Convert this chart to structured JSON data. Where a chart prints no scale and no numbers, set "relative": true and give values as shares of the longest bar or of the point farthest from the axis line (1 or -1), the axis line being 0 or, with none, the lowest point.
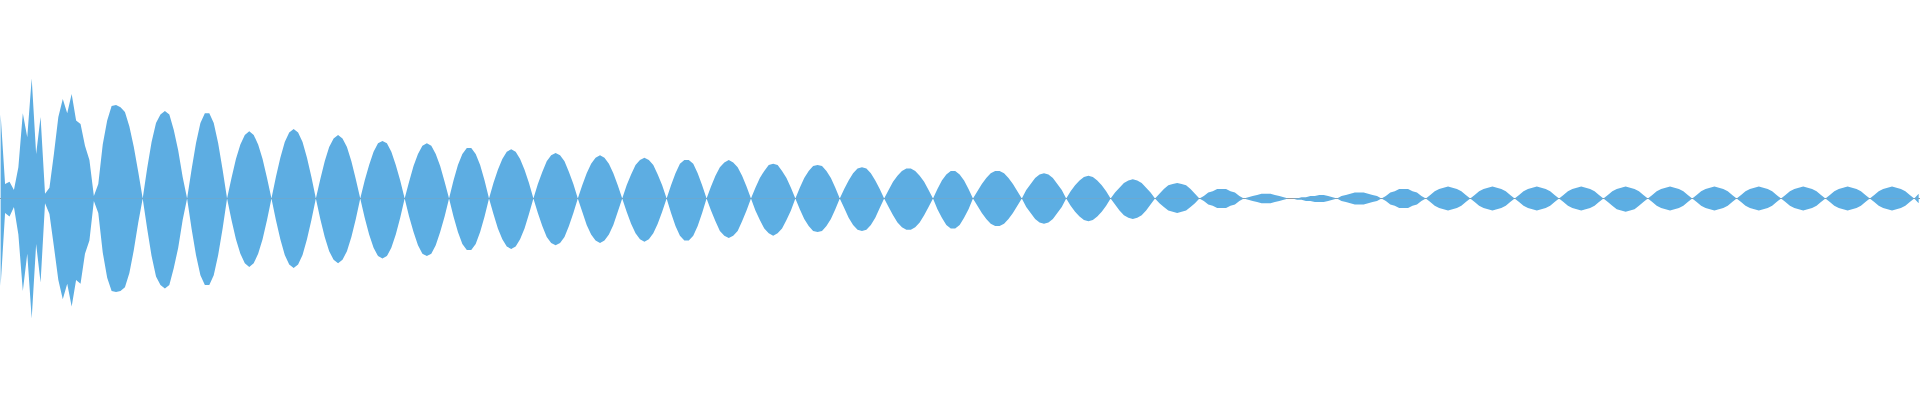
{
  "chart_data": {
    "type": "area",
    "relative": true,
    "categories": [
      null,
      null,
      null,
      null,
      null,
      null,
      null,
      null,
      null,
      null,
      null,
      null,
      null,
      null,
      null,
      null,
      null,
      null,
      null,
      null,
      null,
      null,
      null,
      null,
      null,
      null,
      null,
      null,
      null,
      null,
      null,
      null,
      null,
      null,
      null,
      null,
      null,
      null,
      null,
      null,
      null,
      null,
      null,
      null,
      null,
      null,
      null,
      null,
      null,
      null,
      null,
      null,
      null,
      null,
      null,
      null,
      null,
      null,
      null,
      null,
      null,
      null,
      null,
      null,
      null,
      null,
      null,
      null,
      null,
      null,
      null,
      null,
      null,
      null,
      null,
      null,
      null,
      null,
      null,
      null,
      null,
      null,
      null,
      null,
      null,
      null,
      null,
      null,
      null,
      null,
      null,
      null,
      null,
      null,
      null,
      null,
      null,
      null,
      null,
      null,
      null,
      null,
      null,
      null,
      null,
      null,
      null,
      null,
      null,
      null,
      null,
      null,
      null,
      null,
      null,
      null,
      null,
      null,
      null,
      null,
      null,
      null,
      null,
      null,
      null,
      null,
      null,
      null,
      null,
      null,
      null,
      null,
      null,
      null,
      null,
      null,
      null,
      null,
      null,
      null,
      null,
      null,
      null,
      null,
      null,
      null,
      null,
      null,
      null,
      null,
      null,
      null,
      null,
      null,
      null,
      null,
      null,
      null,
      null,
      null,
      null,
      null,
      null,
      null,
      null,
      null,
      null,
      null,
      null,
      null,
      null,
      null,
      null,
      null,
      null,
      null,
      null,
      null,
      null,
      null,
      null,
      null,
      null,
      null,
      null,
      null,
      null,
      null,
      null,
      null,
      null,
      null,
      null,
      null,
      null,
      null,
      null,
      null,
      null,
      null,
      null,
      null,
      null,
      null,
      null,
      null,
      null,
      null,
      null,
      null,
      null,
      null,
      null,
      null,
      null,
      null,
      null,
      null,
      null,
      null,
      null,
      null,
      null,
      null,
      null,
      null,
      null,
      null,
      null,
      null,
      null,
      null,
      null,
      null,
      null,
      null,
      null,
      null,
      null,
      null,
      null,
      null,
      null,
      null,
      null,
      null,
      null,
      null,
      null,
      null,
      null,
      null,
      null,
      null,
      null,
      null,
      null,
      null,
      null,
      null,
      null,
      null,
      null,
      null,
      null,
      null,
      null,
      null,
      null,
      null,
      null,
      null,
      null,
      null,
      null,
      null,
      null,
      null,
      null,
      null,
      null,
      null,
      null,
      null,
      null,
      null,
      null,
      null,
      null,
      null,
      null,
      null,
      null,
      null,
      null,
      null,
      null,
      null,
      null,
      null,
      null,
      null,
      null,
      null,
      null,
      null,
      null,
      null,
      null,
      null,
      null,
      null,
      null,
      null,
      null,
      null,
      null,
      null,
      null,
      null,
      null,
      null,
      null,
      null,
      null,
      null,
      null,
      null,
      null,
      null,
      null,
      null,
      null,
      null,
      null,
      null,
      null,
      null,
      null,
      null,
      null,
      null,
      null,
      null,
      null,
      null,
      null,
      null,
      null,
      null,
      null,
      null,
      null,
      null,
      null,
      null,
      null,
      null,
      null,
      null,
      null,
      null,
      null,
      null,
      null,
      null,
      null,
      null,
      null,
      null,
      null,
      null,
      null,
      null,
      null,
      null,
      null,
      null,
      null,
      null,
      null,
      null,
      null,
      null,
      null,
      null,
      null,
      null,
      null,
      null,
      null,
      null,
      null,
      null,
      null,
      null,
      null,
      null,
      null,
      null,
      null,
      null,
      null,
      null,
      null,
      null,
      null,
      null,
      null,
      null,
      null,
      null,
      null,
      null,
      null,
      null,
      null,
      null,
      null,
      null,
      null,
      null,
      null,
      null,
      null,
      null,
      null,
      null,
      null,
      null,
      null,
      null,
      null
    ],
    "series": [
      {
        "color": "#5dade2",
        "values": [
          0.7,
          0.12,
          0.14,
          0.07,
          0.26,
          0.71,
          0.51,
          1.0,
          0.37,
          0.68,
          0.04,
          0.09,
          0.37,
          0.68,
          0.83,
          0.71,
          0.87,
          0.65,
          0.62,
          0.44,
          0.32,
          0.02,
          0.12,
          0.45,
          0.65,
          0.77,
          0.78,
          0.76,
          0.72,
          0.6,
          0.43,
          0.22,
          0,
          0.25,
          0.47,
          0.63,
          0.7,
          0.73,
          0.7,
          0.57,
          0.4,
          0.18,
          0,
          0.24,
          0.46,
          0.63,
          0.71,
          0.71,
          0.63,
          0.46,
          0.24,
          0,
          0.17,
          0.33,
          0.45,
          0.53,
          0.56,
          0.53,
          0.45,
          0.33,
          0.17,
          0,
          0.18,
          0.34,
          0.47,
          0.55,
          0.58,
          0.55,
          0.47,
          0.34,
          0.18,
          0,
          0.16,
          0.31,
          0.43,
          0.5,
          0.53,
          0.5,
          0.43,
          0.31,
          0.16,
          0,
          0.15,
          0.28,
          0.39,
          0.46,
          0.48,
          0.46,
          0.39,
          0.28,
          0.15,
          0,
          0.14,
          0.27,
          0.37,
          0.44,
          0.46,
          0.44,
          0.37,
          0.27,
          0.14,
          0,
          0.15,
          0.28,
          0.37,
          0.42,
          0.42,
          0.37,
          0.28,
          0.15,
          0,
          0.13,
          0.24,
          0.33,
          0.39,
          0.41,
          0.39,
          0.33,
          0.24,
          0.13,
          0,
          0.12,
          0.22,
          0.31,
          0.36,
          0.38,
          0.36,
          0.31,
          0.22,
          0.12,
          0,
          0.11,
          0.21,
          0.29,
          0.34,
          0.36,
          0.34,
          0.29,
          0.21,
          0.11,
          0,
          0.11,
          0.2,
          0.28,
          0.32,
          0.34,
          0.32,
          0.28,
          0.2,
          0.11,
          0,
          0.11,
          0.21,
          0.29,
          0.32,
          0.32,
          0.29,
          0.21,
          0.11,
          0,
          0.1,
          0.19,
          0.26,
          0.3,
          0.32,
          0.3,
          0.26,
          0.19,
          0.1,
          0,
          0.09,
          0.17,
          0.23,
          0.28,
          0.29,
          0.28,
          0.23,
          0.17,
          0.09,
          0,
          0.09,
          0.17,
          0.23,
          0.27,
          0.28,
          0.27,
          0.23,
          0.17,
          0.09,
          0,
          0.08,
          0.15,
          0.21,
          0.25,
          0.26,
          0.25,
          0.21,
          0.15,
          0.08,
          0,
          0.07,
          0.14,
          0.19,
          0.23,
          0.25,
          0.25,
          0.23,
          0.19,
          0.14,
          0.07,
          0,
          0.08,
          0.15,
          0.2,
          0.23,
          0.23,
          0.2,
          0.15,
          0.08,
          0,
          0.06,
          0.12,
          0.17,
          0.21,
          0.23,
          0.23,
          0.21,
          0.17,
          0.12,
          0.06,
          0,
          0.07,
          0.12,
          0.17,
          0.2,
          0.21,
          0.2,
          0.17,
          0.12,
          0.07,
          0,
          0.06,
          0.11,
          0.15,
          0.18,
          0.19,
          0.18,
          0.15,
          0.11,
          0.06,
          0,
          0.05,
          0.09,
          0.13,
          0.15,
          0.16,
          0.15,
          0.13,
          0.09,
          0.05,
          0,
          0.04,
          0.08,
          0.11,
          0.12,
          0.13,
          0.12,
          0.11,
          0.08,
          0.04,
          0,
          0.02,
          0.05,
          0.06,
          0.08,
          0.08,
          0.08,
          0.06,
          0.05,
          0.02,
          0,
          0.01,
          0.02,
          0.03,
          0.04,
          0.04,
          0.04,
          0.03,
          0.02,
          0.01,
          0,
          0,
          0,
          0.01,
          0.01,
          0.02,
          0.02,
          0.03,
          0.03,
          0.02,
          0.01,
          0,
          0.02,
          0.03,
          0.04,
          0.05,
          0.05,
          0.05,
          0.04,
          0.03,
          0.02,
          0,
          0.02,
          0.05,
          0.06,
          0.08,
          0.08,
          0.08,
          0.06,
          0.05,
          0.02,
          0,
          0.03,
          0.06,
          0.08,
          0.09,
          0.1,
          0.09,
          0.08,
          0.06,
          0.03,
          0,
          0.03,
          0.06,
          0.08,
          0.09,
          0.1,
          0.09,
          0.08,
          0.06,
          0.03,
          0,
          0.03,
          0.06,
          0.08,
          0.09,
          0.1,
          0.09,
          0.08,
          0.06,
          0.03,
          0,
          0.03,
          0.06,
          0.08,
          0.09,
          0.1,
          0.09,
          0.08,
          0.06,
          0.03,
          0,
          0.03,
          0.06,
          0.08,
          0.09,
          0.1,
          0.09,
          0.08,
          0.06,
          0.03,
          0,
          0.03,
          0.06,
          0.08,
          0.09,
          0.1,
          0.09,
          0.08,
          0.06,
          0.03,
          0,
          0.03,
          0.06,
          0.08,
          0.09,
          0.1,
          0.09,
          0.08,
          0.06,
          0.03,
          0,
          0.03,
          0.06,
          0.08,
          0.09,
          0.1,
          0.09,
          0.08,
          0.06,
          0.03,
          0,
          0.03,
          0.06,
          0.08,
          0.09,
          0.1,
          0.09,
          0.08,
          0.06,
          0.03,
          0,
          0.03,
          0.06,
          0.08,
          0.09,
          0.1,
          0.09,
          0.08,
          0.06,
          0.03,
          0,
          0.03,
          0.06,
          0.08,
          0.09,
          0.1,
          0.09,
          0.08,
          0.06,
          0.03,
          0,
          0.04
        ]
      },
      {
        "color": "#5caee3",
        "values": [
          -0.73,
          -0.12,
          -0.15,
          -0.07,
          -0.3,
          -0.77,
          -0.46,
          -1.0,
          -0.38,
          -0.7,
          -0.04,
          -0.13,
          -0.4,
          -0.68,
          -0.84,
          -0.71,
          -0.9,
          -0.68,
          -0.71,
          -0.46,
          -0.35,
          -0.02,
          -0.12,
          -0.45,
          -0.66,
          -0.77,
          -0.78,
          -0.77,
          -0.74,
          -0.62,
          -0.43,
          -0.2,
          0,
          -0.25,
          -0.48,
          -0.65,
          -0.72,
          -0.75,
          -0.72,
          -0.58,
          -0.41,
          -0.18,
          0,
          -0.25,
          -0.47,
          -0.64,
          -0.72,
          -0.72,
          -0.64,
          -0.47,
          -0.25,
          0,
          -0.18,
          -0.34,
          -0.46,
          -0.54,
          -0.57,
          -0.54,
          -0.46,
          -0.34,
          -0.18,
          0,
          -0.18,
          -0.34,
          -0.47,
          -0.55,
          -0.58,
          -0.55,
          -0.47,
          -0.34,
          -0.18,
          0,
          -0.17,
          -0.32,
          -0.44,
          -0.51,
          -0.54,
          -0.51,
          -0.44,
          -0.32,
          -0.17,
          0,
          -0.16,
          -0.3,
          -0.41,
          -0.48,
          -0.5,
          -0.48,
          -0.41,
          -0.3,
          -0.16,
          0,
          -0.15,
          -0.28,
          -0.39,
          -0.46,
          -0.48,
          -0.46,
          -0.39,
          -0.28,
          -0.15,
          0,
          -0.15,
          -0.28,
          -0.38,
          -0.43,
          -0.43,
          -0.38,
          -0.28,
          -0.15,
          0,
          -0.13,
          -0.25,
          -0.34,
          -0.4,
          -0.42,
          -0.4,
          -0.34,
          -0.25,
          -0.13,
          0,
          -0.12,
          -0.23,
          -0.32,
          -0.37,
          -0.39,
          -0.37,
          -0.32,
          -0.23,
          -0.12,
          0,
          -0.11,
          -0.22,
          -0.3,
          -0.35,
          -0.37,
          -0.35,
          -0.3,
          -0.22,
          -0.11,
          0,
          -0.11,
          -0.21,
          -0.29,
          -0.34,
          -0.36,
          -0.34,
          -0.29,
          -0.21,
          -0.11,
          0,
          -0.12,
          -0.23,
          -0.31,
          -0.35,
          -0.35,
          -0.31,
          -0.23,
          -0.12,
          0,
          -0.1,
          -0.19,
          -0.27,
          -0.31,
          -0.33,
          -0.31,
          -0.27,
          -0.19,
          -0.1,
          0,
          -0.1,
          -0.18,
          -0.25,
          -0.29,
          -0.31,
          -0.29,
          -0.25,
          -0.18,
          -0.1,
          0,
          -0.09,
          -0.17,
          -0.23,
          -0.27,
          -0.28,
          -0.27,
          -0.23,
          -0.17,
          -0.09,
          0,
          -0.08,
          -0.16,
          -0.22,
          -0.26,
          -0.27,
          -0.26,
          -0.22,
          -0.16,
          -0.08,
          0,
          -0.07,
          -0.14,
          -0.2,
          -0.24,
          -0.26,
          -0.26,
          -0.24,
          -0.2,
          -0.14,
          -0.07,
          0,
          -0.09,
          -0.16,
          -0.22,
          -0.25,
          -0.25,
          -0.22,
          -0.16,
          -0.09,
          0,
          -0.06,
          -0.12,
          -0.17,
          -0.21,
          -0.23,
          -0.23,
          -0.21,
          -0.17,
          -0.12,
          -0.06,
          0,
          -0.07,
          -0.12,
          -0.17,
          -0.2,
          -0.21,
          -0.2,
          -0.17,
          -0.12,
          -0.07,
          0,
          -0.06,
          -0.11,
          -0.15,
          -0.18,
          -0.19,
          -0.18,
          -0.15,
          -0.11,
          -0.06,
          0,
          -0.05,
          -0.1,
          -0.14,
          -0.16,
          -0.17,
          -0.16,
          -0.14,
          -0.1,
          -0.05,
          0,
          -0.04,
          -0.07,
          -0.1,
          -0.11,
          -0.12,
          -0.11,
          -0.1,
          -0.07,
          -0.04,
          0,
          -0.02,
          -0.05,
          -0.06,
          -0.08,
          -0.08,
          -0.08,
          -0.06,
          -0.05,
          -0.02,
          0,
          -0.01,
          -0.02,
          -0.03,
          -0.04,
          -0.04,
          -0.04,
          -0.03,
          -0.02,
          -0.01,
          0,
          0,
          -0.01,
          -0.01,
          -0.02,
          -0.02,
          -0.03,
          -0.03,
          -0.03,
          -0.02,
          -0.01,
          0,
          -0.02,
          -0.03,
          -0.04,
          -0.05,
          -0.05,
          -0.05,
          -0.04,
          -0.03,
          -0.02,
          0,
          -0.02,
          -0.05,
          -0.06,
          -0.08,
          -0.08,
          -0.08,
          -0.06,
          -0.05,
          -0.02,
          0,
          -0.03,
          -0.06,
          -0.08,
          -0.09,
          -0.1,
          -0.09,
          -0.08,
          -0.06,
          -0.03,
          0,
          -0.03,
          -0.06,
          -0.08,
          -0.09,
          -0.1,
          -0.09,
          -0.08,
          -0.06,
          -0.03,
          0,
          -0.03,
          -0.06,
          -0.08,
          -0.09,
          -0.1,
          -0.09,
          -0.08,
          -0.06,
          -0.03,
          0,
          -0.03,
          -0.06,
          -0.08,
          -0.09,
          -0.1,
          -0.09,
          -0.08,
          -0.06,
          -0.03,
          0,
          -0.03,
          -0.06,
          -0.09,
          -0.1,
          -0.11,
          -0.1,
          -0.09,
          -0.06,
          -0.03,
          0,
          -0.03,
          -0.06,
          -0.08,
          -0.09,
          -0.1,
          -0.09,
          -0.08,
          -0.06,
          -0.03,
          0,
          -0.03,
          -0.06,
          -0.08,
          -0.09,
          -0.1,
          -0.09,
          -0.08,
          -0.06,
          -0.03,
          0,
          -0.03,
          -0.06,
          -0.08,
          -0.09,
          -0.1,
          -0.09,
          -0.08,
          -0.06,
          -0.03,
          0,
          -0.03,
          -0.06,
          -0.08,
          -0.09,
          -0.1,
          -0.09,
          -0.08,
          -0.06,
          -0.03,
          0,
          -0.03,
          -0.06,
          -0.08,
          -0.09,
          -0.1,
          -0.09,
          -0.08,
          -0.06,
          -0.03,
          0,
          -0.03,
          -0.06,
          -0.08,
          -0.09,
          -0.1,
          -0.09,
          -0.08,
          -0.06,
          -0.03,
          0,
          -0.04
        ]
      }
    ]
  }
}
